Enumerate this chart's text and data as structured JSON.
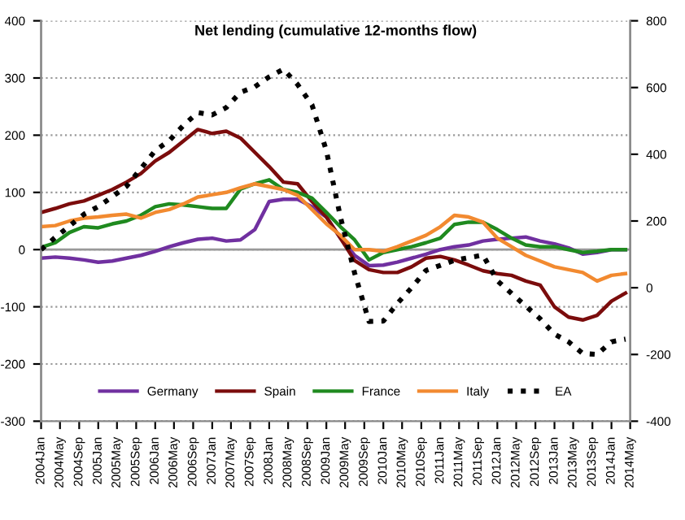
{
  "chart_data": {
    "type": "line",
    "title": "Net lending (cumulative 12-months flow)",
    "x": [
      "2004-01",
      "2004-04",
      "2004-07",
      "2004-10",
      "2005-01",
      "2005-04",
      "2005-07",
      "2005-10",
      "2006-01",
      "2006-04",
      "2006-07",
      "2006-10",
      "2007-01",
      "2007-04",
      "2007-07",
      "2007-10",
      "2008-01",
      "2008-04",
      "2008-07",
      "2008-10",
      "2009-01",
      "2009-04",
      "2009-07",
      "2009-10",
      "2010-01",
      "2010-04",
      "2010-07",
      "2010-10",
      "2011-01",
      "2011-04",
      "2011-07",
      "2011-10",
      "2012-01",
      "2012-04",
      "2012-07",
      "2012-10",
      "2013-01",
      "2013-04",
      "2013-07",
      "2013-10",
      "2014-01",
      "2014-04"
    ],
    "series": [
      {
        "name": "Germany",
        "color": "#7030a0",
        "values": [
          -15,
          -13,
          -15,
          -18,
          -22,
          -20,
          -15,
          -10,
          -3,
          5,
          12,
          18,
          20,
          15,
          17,
          35,
          84,
          88,
          88,
          75,
          57,
          20,
          -10,
          -28,
          -27,
          -22,
          -15,
          -8,
          0,
          5,
          8,
          15,
          18,
          20,
          22,
          15,
          10,
          3,
          -8,
          -5,
          0,
          0
        ]
      },
      {
        "name": "Spain",
        "color": "#7b0c0c",
        "values": [
          65,
          72,
          80,
          85,
          95,
          105,
          118,
          133,
          155,
          170,
          190,
          210,
          203,
          207,
          195,
          170,
          145,
          118,
          115,
          84,
          57,
          20,
          -19,
          -35,
          -40,
          -40,
          -30,
          -15,
          -12,
          -18,
          -27,
          -37,
          -42,
          -45,
          -55,
          -62,
          -100,
          -118,
          -123,
          -115,
          -90,
          -76
        ]
      },
      {
        "name": "France",
        "color": "#1f8a1f",
        "values": [
          4,
          12,
          30,
          40,
          38,
          45,
          50,
          60,
          75,
          80,
          78,
          75,
          72,
          72,
          106,
          115,
          122,
          105,
          100,
          90,
          65,
          40,
          17,
          -18,
          -5,
          0,
          5,
          12,
          20,
          44,
          48,
          48,
          35,
          20,
          8,
          5,
          5,
          0,
          -5,
          -3,
          0,
          0
        ]
      },
      {
        "name": "Italy",
        "color": "#f28a30",
        "values": [
          40,
          42,
          50,
          55,
          57,
          60,
          62,
          55,
          65,
          70,
          80,
          92,
          96,
          100,
          108,
          115,
          110,
          105,
          95,
          70,
          45,
          25,
          0,
          0,
          -3,
          5,
          15,
          25,
          40,
          60,
          57,
          48,
          20,
          5,
          -10,
          -20,
          -30,
          -35,
          -40,
          -55,
          -45,
          -42
        ]
      },
      {
        "name": "EA",
        "color": "#000000",
        "axis": "y2",
        "line_style": "dotted",
        "values": [
          114,
          151,
          185,
          220,
          243,
          273,
          304,
          357,
          411,
          441,
          487,
          525,
          518,
          540,
          586,
          602,
          632,
          655,
          609,
          548,
          411,
          212,
          44,
          -101,
          -100,
          -47,
          0,
          52,
          67,
          82,
          90,
          98,
          21,
          -17,
          -55,
          -93,
          -139,
          -162,
          -197,
          -200,
          -162,
          -154
        ]
      }
    ],
    "xlim": [
      "2004-01",
      "2014-05"
    ],
    "xticks": [
      {
        "value": "2004-01",
        "label": "2004Jan"
      },
      {
        "value": "2004-05",
        "label": "2004May"
      },
      {
        "value": "2004-09",
        "label": "2004Sep"
      },
      {
        "value": "2005-01",
        "label": "2005Jan"
      },
      {
        "value": "2005-05",
        "label": "2005May"
      },
      {
        "value": "2005-09",
        "label": "2005Sep"
      },
      {
        "value": "2006-01",
        "label": "2006Jan"
      },
      {
        "value": "2006-05",
        "label": "2006May"
      },
      {
        "value": "2006-09",
        "label": "2006Sep"
      },
      {
        "value": "2007-01",
        "label": "2007Jan"
      },
      {
        "value": "2007-05",
        "label": "2007May"
      },
      {
        "value": "2007-09",
        "label": "2007Sep"
      },
      {
        "value": "2008-01",
        "label": "2008Jan"
      },
      {
        "value": "2008-05",
        "label": "2008May"
      },
      {
        "value": "2008-09",
        "label": "2008Sep"
      },
      {
        "value": "2009-01",
        "label": "2009Jan"
      },
      {
        "value": "2009-05",
        "label": "2009May"
      },
      {
        "value": "2009-09",
        "label": "2009Sep"
      },
      {
        "value": "2010-01",
        "label": "2010Jan"
      },
      {
        "value": "2010-05",
        "label": "2010May"
      },
      {
        "value": "2010-09",
        "label": "2010Sep"
      },
      {
        "value": "2011-01",
        "label": "2011Jan"
      },
      {
        "value": "2011-05",
        "label": "2011May"
      },
      {
        "value": "2011-09",
        "label": "2011Sep"
      },
      {
        "value": "2012-01",
        "label": "2012Jan"
      },
      {
        "value": "2012-05",
        "label": "2012May"
      },
      {
        "value": "2012-09",
        "label": "2012Sep"
      },
      {
        "value": "2013-01",
        "label": "2013Jan"
      },
      {
        "value": "2013-05",
        "label": "2013May"
      },
      {
        "value": "2013-09",
        "label": "2013Sep"
      },
      {
        "value": "2014-01",
        "label": "2014Jan"
      },
      {
        "value": "2014-05",
        "label": "2014May"
      }
    ],
    "ylim": [
      -300,
      400
    ],
    "yticks": [
      -300,
      -200,
      -100,
      0,
      100,
      200,
      300,
      400
    ],
    "y2lim": [
      -400,
      800
    ],
    "y2ticks": [
      -400,
      -200,
      0,
      200,
      400,
      600,
      800
    ],
    "grid": "y",
    "legend": "bottom",
    "marker": "none",
    "line_style": "solid"
  }
}
